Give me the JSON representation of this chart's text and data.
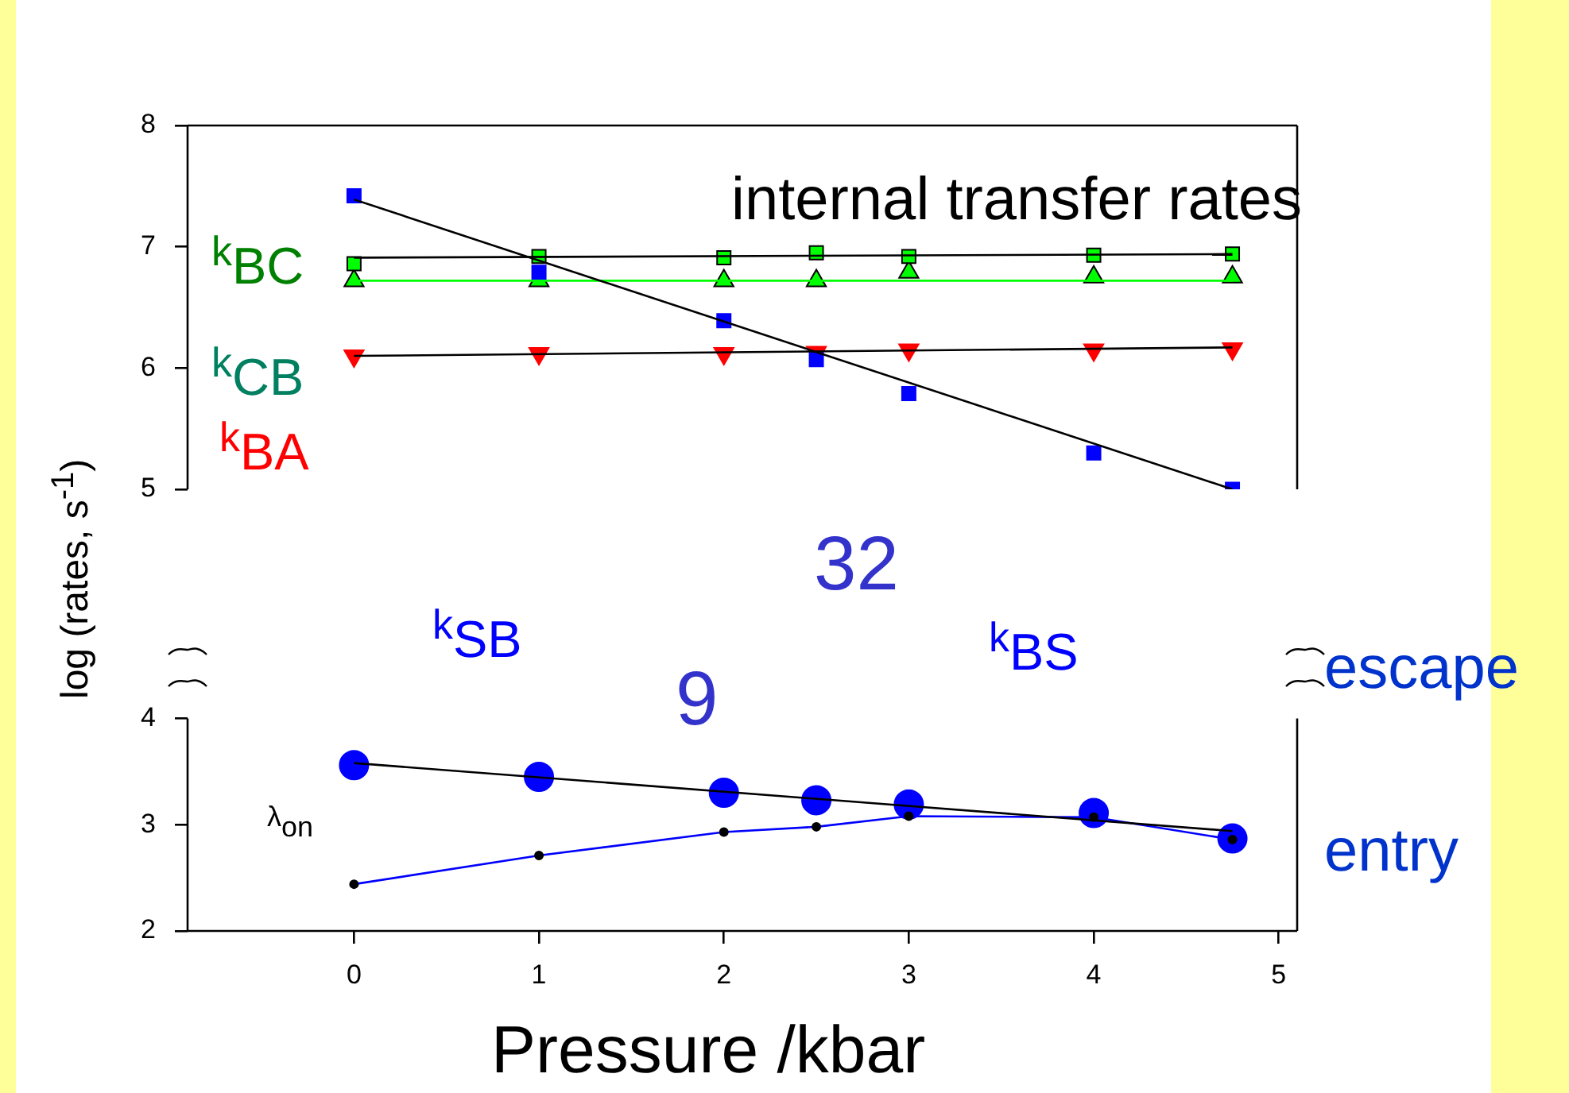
{
  "chart_data": [
    {
      "type": "scatter",
      "ylabel": "log (rates, s$^{-1}$)",
      "xlim": [
        -0.9,
        5.1
      ],
      "ylim": [
        5,
        8
      ],
      "yticks": [
        5,
        6,
        7,
        8
      ],
      "tick_labels": "y",
      "grid": false,
      "legend": "left",
      "annotations": [
        "internal transfer rates",
        "32",
        "escape"
      ],
      "series": [
        {
          "name": "k$_{BS}$",
          "marker": "square",
          "color": "#0000ff",
          "x": [
            0,
            1,
            2,
            2.5,
            3,
            4,
            4.75
          ],
          "values": [
            7.42,
            6.79,
            6.39,
            6.07,
            5.79,
            5.3,
            5.0
          ]
        },
        {
          "type": "line",
          "marker": "none",
          "color": "#000000",
          "x": [
            0,
            4.75
          ],
          "values": [
            7.39,
            5.0
          ]
        },
        {
          "name": "k$_{BC}$",
          "marker": "square",
          "color": "#00ff00",
          "x": [
            0,
            1,
            2,
            2.5,
            3,
            4,
            4.75
          ],
          "values": [
            6.86,
            6.92,
            6.91,
            6.95,
            6.92,
            6.93,
            6.94
          ]
        },
        {
          "type": "line",
          "marker": "none",
          "color": "#000000",
          "x": [
            0,
            4.75
          ],
          "values": [
            6.91,
            6.94
          ]
        },
        {
          "name": "k$_{CB}$",
          "marker": "triangle",
          "color": "#00ff00",
          "x": [
            0,
            1,
            2,
            2.5,
            3,
            4,
            4.75
          ],
          "values": [
            6.72,
            6.72,
            6.72,
            6.72,
            6.79,
            6.75,
            6.75
          ]
        },
        {
          "type": "line",
          "marker": "none",
          "color": "#00ff00",
          "x": [
            0,
            4.75
          ],
          "values": [
            6.72,
            6.72
          ]
        },
        {
          "name": "k$_{BA}$",
          "marker": "triangle_down",
          "color": "#ff0000",
          "x": [
            0,
            1,
            2,
            2.5,
            3,
            4,
            4.75
          ],
          "values": [
            6.1,
            6.12,
            6.12,
            6.13,
            6.15,
            6.15,
            6.16
          ]
        },
        {
          "type": "line",
          "marker": "none",
          "color": "#000000",
          "x": [
            0,
            4.75
          ],
          "values": [
            6.1,
            6.17
          ]
        }
      ]
    },
    {
      "type": "scatter",
      "xlabel": "Pressure /kbar",
      "xlim": [
        -0.9,
        5.1
      ],
      "xticks": [
        0,
        1,
        2,
        3,
        4,
        5
      ],
      "ylim": [
        2,
        4
      ],
      "yticks": [
        2,
        3,
        4
      ],
      "grid": false,
      "legend": false,
      "annotations": [
        "9",
        "entry"
      ],
      "series": [
        {
          "name": "k$_{SB}$",
          "marker": "circle",
          "color": "#0000ff",
          "x": [
            0,
            1,
            2,
            2.5,
            3,
            4,
            4.75
          ],
          "values": [
            3.56,
            3.45,
            3.3,
            3.23,
            3.19,
            3.11,
            2.87
          ]
        },
        {
          "type": "line",
          "marker": "none",
          "color": "#000000",
          "x": [
            0,
            4.75
          ],
          "values": [
            3.58,
            2.94
          ]
        },
        {
          "type": "line",
          "marker": "none",
          "color": "#0000ff",
          "x": [
            0,
            1,
            2,
            2.5,
            3,
            4,
            4.75
          ],
          "values": [
            2.44,
            2.71,
            2.93,
            2.98,
            3.08,
            3.07,
            2.86
          ]
        },
        {
          "name": "λ$_{on}$",
          "marker": "circle",
          "color": "#000000",
          "x": [
            0,
            1,
            2,
            2.5,
            3,
            4,
            4.75
          ],
          "values": [
            2.44,
            2.71,
            2.93,
            2.98,
            3.08,
            3.07,
            2.86
          ]
        }
      ]
    }
  ]
}
